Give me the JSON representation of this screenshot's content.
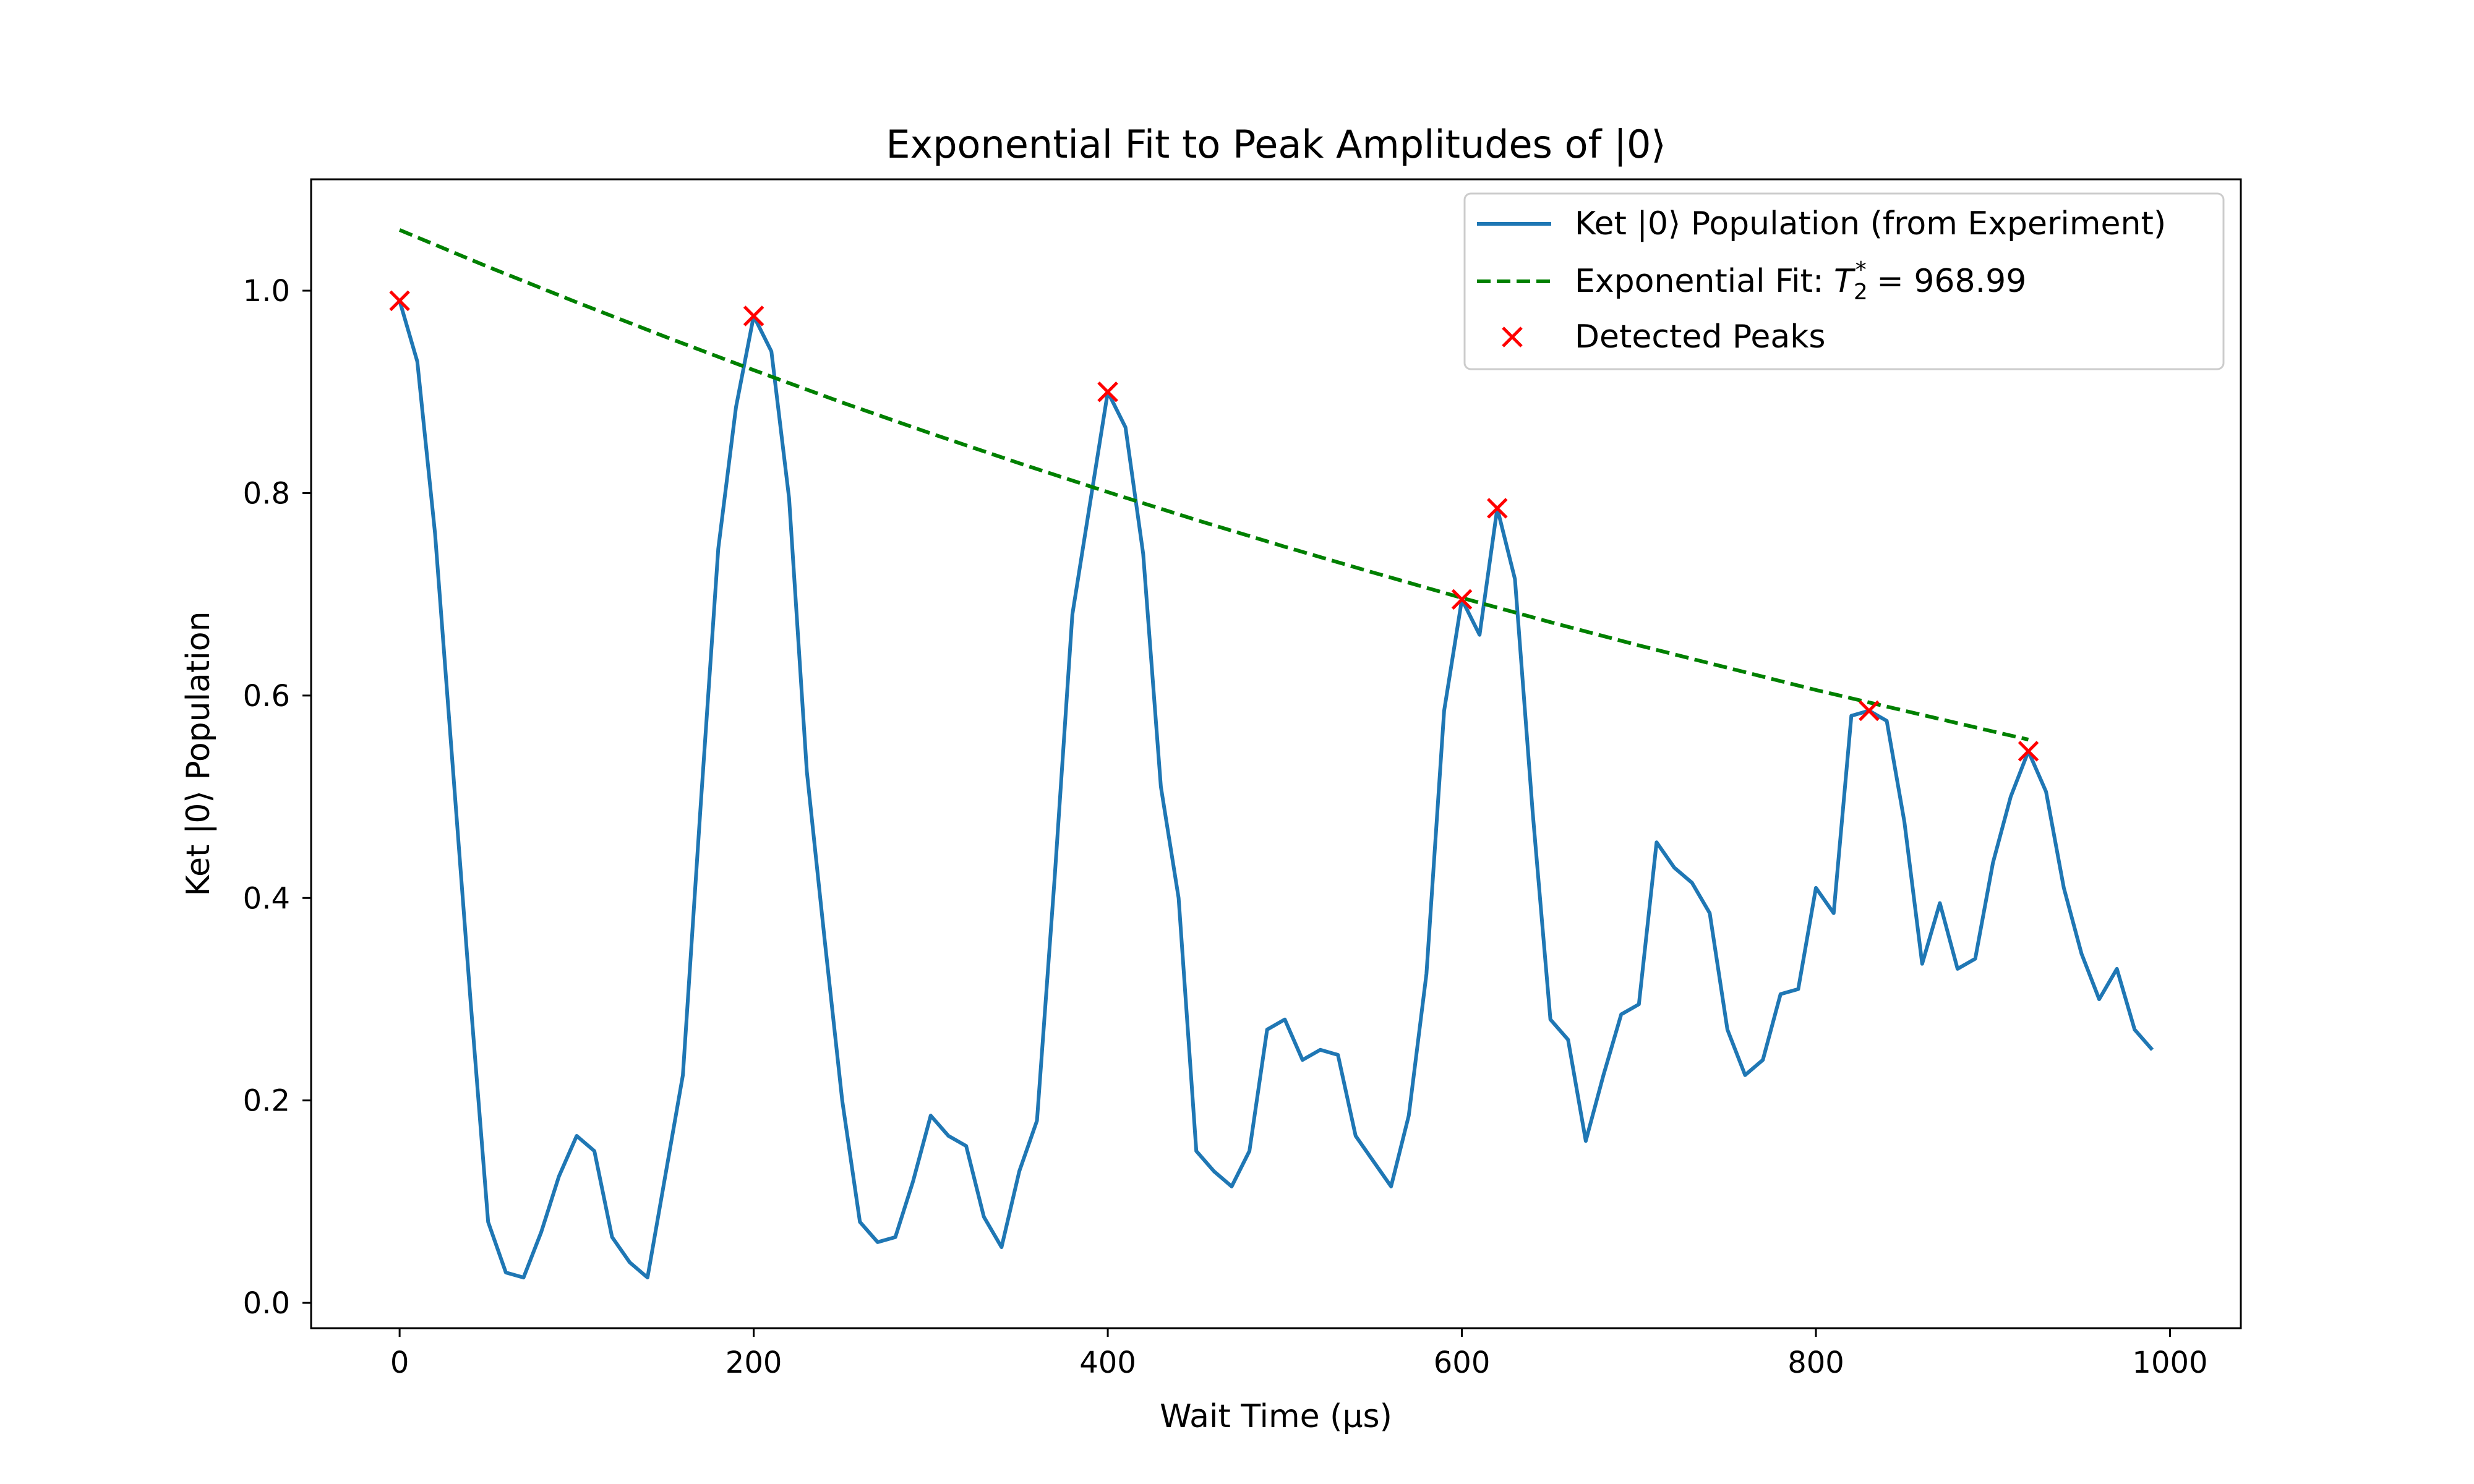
{
  "chart_data": {
    "type": "line",
    "title": "Exponential Fit to Peak Amplitudes of |0⟩",
    "xlabel": "Wait Time (μs)",
    "ylabel": "Ket |0⟩ Population",
    "xlim": [
      -50,
      1040
    ],
    "ylim": [
      -0.025,
      1.11
    ],
    "x_ticks": [
      0,
      200,
      400,
      600,
      800,
      1000
    ],
    "y_ticks": [
      0.0,
      0.2,
      0.4,
      0.6,
      0.8,
      1.0
    ],
    "x_tick_labels": [
      "0",
      "200",
      "400",
      "600",
      "800",
      "1000"
    ],
    "y_tick_labels": [
      "0.0",
      "0.2",
      "0.4",
      "0.6",
      "0.8",
      "1.0"
    ],
    "grid": false,
    "legend_position": "top-right",
    "series": [
      {
        "name": "Ket |0⟩ Population (from Experiment)",
        "style": "solid",
        "color": "#1f77b4",
        "x": [
          0,
          10,
          20,
          30,
          40,
          50,
          60,
          70,
          80,
          90,
          100,
          110,
          120,
          130,
          140,
          150,
          160,
          170,
          180,
          190,
          200,
          210,
          220,
          230,
          240,
          250,
          260,
          270,
          280,
          290,
          300,
          310,
          320,
          330,
          340,
          350,
          360,
          370,
          380,
          390,
          400,
          410,
          420,
          430,
          440,
          450,
          460,
          470,
          480,
          490,
          500,
          510,
          520,
          530,
          540,
          550,
          560,
          570,
          580,
          590,
          600,
          610,
          620,
          630,
          640,
          650,
          660,
          670,
          680,
          690,
          700,
          710,
          720,
          730,
          740,
          750,
          760,
          770,
          780,
          790,
          800,
          810,
          820,
          830,
          840,
          850,
          860,
          870,
          880,
          890,
          900,
          910,
          920,
          930,
          940,
          950,
          960,
          970,
          980,
          990
        ],
        "y": [
          0.99,
          0.93,
          0.76,
          0.53,
          0.3,
          0.08,
          0.03,
          0.025,
          0.07,
          0.125,
          0.165,
          0.15,
          0.065,
          0.04,
          0.025,
          0.125,
          0.225,
          0.49,
          0.745,
          0.885,
          0.975,
          0.94,
          0.795,
          0.525,
          0.36,
          0.2,
          0.08,
          0.06,
          0.065,
          0.12,
          0.185,
          0.165,
          0.155,
          0.085,
          0.055,
          0.13,
          0.18,
          0.42,
          0.68,
          0.79,
          0.9,
          0.865,
          0.74,
          0.51,
          0.4,
          0.15,
          0.13,
          0.115,
          0.15,
          0.27,
          0.28,
          0.24,
          0.25,
          0.245,
          0.165,
          0.14,
          0.115,
          0.185,
          0.325,
          0.585,
          0.695,
          0.66,
          0.785,
          0.715,
          0.485,
          0.28,
          0.26,
          0.16,
          0.225,
          0.285,
          0.295,
          0.455,
          0.43,
          0.415,
          0.385,
          0.27,
          0.225,
          0.24,
          0.305,
          0.31,
          0.41,
          0.385,
          0.58,
          0.585,
          0.575,
          0.475,
          0.335,
          0.395,
          0.33,
          0.34,
          0.435,
          0.5,
          0.545,
          0.505,
          0.41,
          0.345,
          0.3,
          0.33,
          0.27,
          0.25
        ]
      },
      {
        "name": "Exponential Fit: T₂* = 968.99",
        "style": "dashed",
        "color": "#008000",
        "x": [
          0,
          50,
          100,
          150,
          200,
          250,
          300,
          350,
          400,
          450,
          500,
          550,
          600,
          650,
          700,
          750,
          800,
          850,
          900,
          920
        ],
        "y": [
          1.06,
          1.0235,
          0.9885,
          0.9545,
          0.9215,
          0.8895,
          0.859,
          0.8295,
          0.801,
          0.7735,
          0.747,
          0.7215,
          0.6965,
          0.6725,
          0.6495,
          0.6275,
          0.6055,
          0.585,
          0.5645,
          0.5565
        ]
      },
      {
        "name": "Detected Peaks",
        "style": "markers",
        "marker": "x",
        "color": "#ff0000",
        "x": [
          0,
          200,
          400,
          600,
          620,
          830,
          920
        ],
        "y": [
          0.99,
          0.975,
          0.9,
          0.695,
          0.785,
          0.585,
          0.545
        ]
      }
    ]
  },
  "legend": {
    "items": [
      {
        "label": "Ket |0⟩ Population (from Experiment)",
        "kind": "solid",
        "color": "#1f77b4"
      },
      {
        "label_prefix": "Exponential Fit: ",
        "label_t": "T",
        "label_sub": "2",
        "label_sup": "*",
        "label_suffix": " = 968.99",
        "kind": "dashed",
        "color": "#008000"
      },
      {
        "label": "Detected Peaks",
        "kind": "x",
        "color": "#ff0000"
      }
    ]
  }
}
